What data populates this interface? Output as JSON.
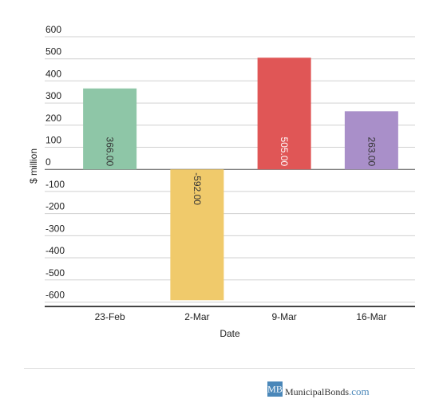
{
  "chart_data": {
    "type": "bar",
    "x_label": "Date",
    "y_label": "$ million",
    "categories": [
      "23-Feb",
      "2-Mar",
      "9-Mar",
      "16-Mar"
    ],
    "values": [
      366,
      -592,
      505,
      263
    ],
    "value_labels": [
      "366.00",
      "-592.00",
      "505.00",
      "263.00"
    ],
    "colors": [
      "#8ec6a7",
      "#f0ca6b",
      "#e05656",
      "#a98fc9"
    ],
    "ylim": [
      -620,
      600
    ],
    "yticks": [
      -600,
      -500,
      -400,
      -300,
      -200,
      -100,
      0,
      100,
      200,
      300,
      400,
      500,
      600
    ],
    "grid": true
  },
  "footer": {
    "badge": "MB",
    "brand": "MunicipalBonds",
    "tld": ".com"
  }
}
